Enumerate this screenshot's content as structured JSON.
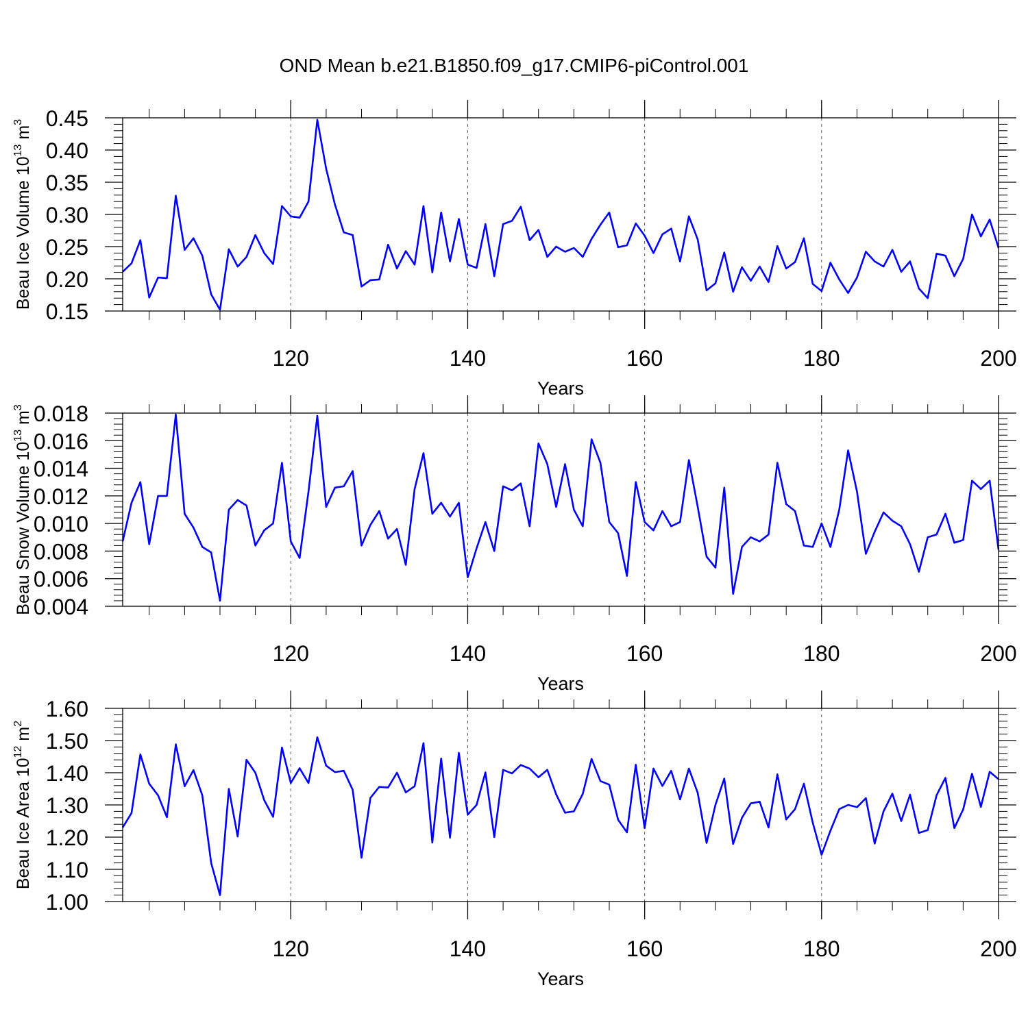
{
  "title": "OND Mean b.e21.B1850.f09_g17.CMIP6-piControl.001",
  "colors": {
    "line": "#0000ff",
    "axis": "#000000",
    "grid": "#555555"
  },
  "chart_data": [
    {
      "type": "line",
      "ylabel": "Beau Ice Volume",
      "yunit_base": "10",
      "yunit_exp": "13",
      "yunit_m": "m",
      "yunit_mexp": "3",
      "xlabel": "Years",
      "xlim": [
        101,
        200
      ],
      "ylim": [
        0.15,
        0.45
      ],
      "xticks": [
        120,
        140,
        160,
        180,
        200
      ],
      "yticks": [
        "0.15",
        "0.20",
        "0.25",
        "0.30",
        "0.35",
        "0.40",
        "0.45"
      ],
      "grid": "dashed vertical lines at labeled x ticks",
      "series": [
        {
          "x_start": 101,
          "values": [
            0.211,
            0.224,
            0.26,
            0.171,
            0.202,
            0.201,
            0.329,
            0.245,
            0.263,
            0.236,
            0.176,
            0.152,
            0.246,
            0.219,
            0.234,
            0.268,
            0.24,
            0.223,
            0.313,
            0.297,
            0.295,
            0.32,
            0.447,
            0.371,
            0.315,
            0.272,
            0.268,
            0.188,
            0.198,
            0.199,
            0.253,
            0.216,
            0.243,
            0.222,
            0.313,
            0.21,
            0.303,
            0.227,
            0.293,
            0.222,
            0.217,
            0.285,
            0.204,
            0.285,
            0.29,
            0.312,
            0.26,
            0.276,
            0.234,
            0.25,
            0.242,
            0.248,
            0.234,
            0.262,
            0.284,
            0.303,
            0.249,
            0.252,
            0.286,
            0.267,
            0.24,
            0.269,
            0.278,
            0.227,
            0.297,
            0.261,
            0.182,
            0.193,
            0.241,
            0.18,
            0.218,
            0.197,
            0.219,
            0.195,
            0.251,
            0.216,
            0.226,
            0.263,
            0.192,
            0.181,
            0.225,
            0.199,
            0.178,
            0.202,
            0.242,
            0.227,
            0.219,
            0.245,
            0.211,
            0.227,
            0.185,
            0.17,
            0.239,
            0.236,
            0.204,
            0.231,
            0.3,
            0.266,
            0.292,
            0.248
          ]
        }
      ]
    },
    {
      "type": "line",
      "ylabel": "Beau Snow Volume",
      "yunit_base": "10",
      "yunit_exp": "13",
      "yunit_m": "m",
      "yunit_mexp": "3",
      "xlabel": "Years",
      "xlim": [
        101,
        200
      ],
      "ylim": [
        0.004,
        0.018
      ],
      "xticks": [
        120,
        140,
        160,
        180,
        200
      ],
      "yticks": [
        "0.004",
        "0.006",
        "0.008",
        "0.010",
        "0.012",
        "0.014",
        "0.016",
        "0.018"
      ],
      "grid": "dashed vertical lines at labeled x ticks",
      "series": [
        {
          "x_start": 101,
          "values": [
            0.0087,
            0.0115,
            0.013,
            0.0085,
            0.012,
            0.012,
            0.0179,
            0.0107,
            0.0097,
            0.0083,
            0.0079,
            0.0044,
            0.011,
            0.0117,
            0.0113,
            0.0084,
            0.0095,
            0.01,
            0.0144,
            0.0087,
            0.0075,
            0.0123,
            0.0178,
            0.0112,
            0.0126,
            0.0127,
            0.0138,
            0.0084,
            0.0099,
            0.0109,
            0.0089,
            0.0096,
            0.007,
            0.0125,
            0.0151,
            0.0107,
            0.0115,
            0.0105,
            0.0115,
            0.0061,
            0.0082,
            0.0101,
            0.008,
            0.0127,
            0.0124,
            0.0129,
            0.0098,
            0.0158,
            0.0143,
            0.0112,
            0.0143,
            0.011,
            0.0098,
            0.0161,
            0.0144,
            0.0101,
            0.0093,
            0.0062,
            0.013,
            0.0101,
            0.0095,
            0.0109,
            0.0098,
            0.0101,
            0.0146,
            0.0112,
            0.0076,
            0.0068,
            0.0126,
            0.0049,
            0.0083,
            0.009,
            0.0087,
            0.0092,
            0.0144,
            0.0114,
            0.0109,
            0.0084,
            0.0083,
            0.01,
            0.0083,
            0.011,
            0.0153,
            0.0123,
            0.0078,
            0.0094,
            0.0108,
            0.0102,
            0.0098,
            0.0085,
            0.0065,
            0.009,
            0.0092,
            0.0107,
            0.0086,
            0.0088,
            0.0131,
            0.0125,
            0.0131,
            0.0081
          ]
        }
      ]
    },
    {
      "type": "line",
      "ylabel": "Beau Ice Area",
      "yunit_base": "10",
      "yunit_exp": "12",
      "yunit_m": "m",
      "yunit_mexp": "2",
      "xlabel": "Years",
      "xlim": [
        101,
        200
      ],
      "ylim": [
        1.0,
        1.6
      ],
      "xticks": [
        120,
        140,
        160,
        180,
        200
      ],
      "yticks": [
        "1.00",
        "1.10",
        "1.20",
        "1.30",
        "1.40",
        "1.50",
        "1.60"
      ],
      "grid": "dashed vertical lines at labeled x ticks",
      "series": [
        {
          "x_start": 101,
          "values": [
            1.23,
            1.275,
            1.457,
            1.366,
            1.33,
            1.262,
            1.488,
            1.358,
            1.408,
            1.33,
            1.12,
            1.02,
            1.35,
            1.202,
            1.44,
            1.4,
            1.315,
            1.263,
            1.478,
            1.368,
            1.414,
            1.368,
            1.51,
            1.422,
            1.402,
            1.406,
            1.347,
            1.136,
            1.322,
            1.356,
            1.354,
            1.4,
            1.339,
            1.358,
            1.492,
            1.183,
            1.444,
            1.198,
            1.462,
            1.27,
            1.3,
            1.401,
            1.2,
            1.409,
            1.398,
            1.424,
            1.413,
            1.386,
            1.409,
            1.333,
            1.276,
            1.28,
            1.334,
            1.443,
            1.374,
            1.363,
            1.254,
            1.215,
            1.425,
            1.228,
            1.413,
            1.359,
            1.406,
            1.317,
            1.413,
            1.337,
            1.182,
            1.3,
            1.382,
            1.179,
            1.26,
            1.305,
            1.31,
            1.23,
            1.395,
            1.255,
            1.287,
            1.366,
            1.245,
            1.145,
            1.22,
            1.287,
            1.3,
            1.293,
            1.321,
            1.18,
            1.28,
            1.335,
            1.25,
            1.332,
            1.213,
            1.222,
            1.33,
            1.384,
            1.228,
            1.286,
            1.397,
            1.294,
            1.403,
            1.38
          ]
        }
      ]
    }
  ]
}
